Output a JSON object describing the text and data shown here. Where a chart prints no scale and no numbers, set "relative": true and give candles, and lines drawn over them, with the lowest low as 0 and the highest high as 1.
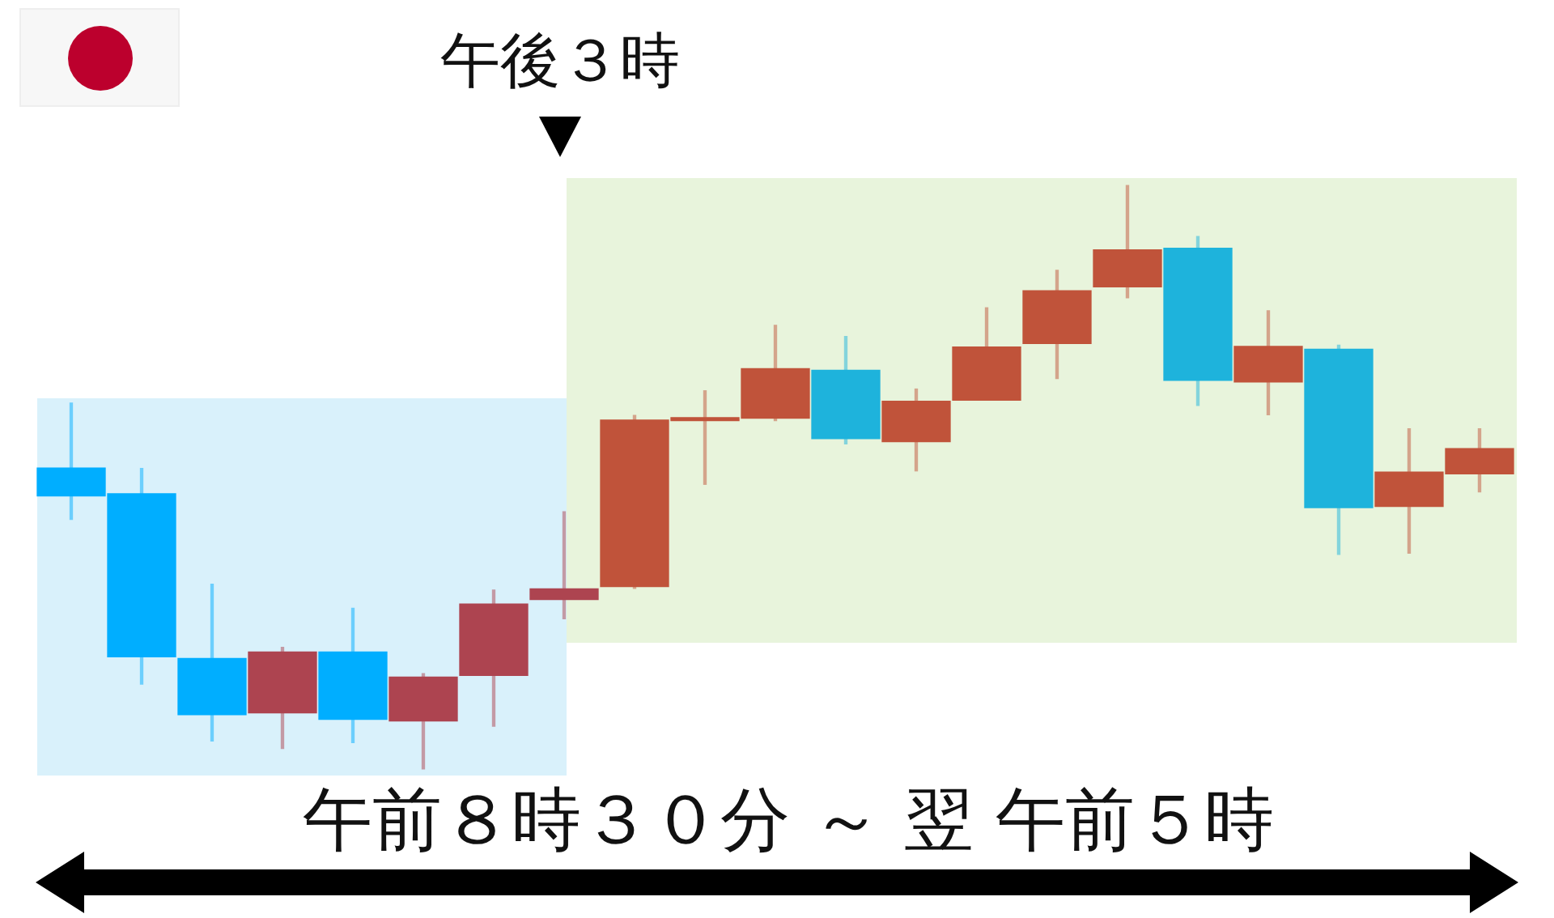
{
  "chart_data": {
    "type": "candlestick",
    "relative": true,
    "categories": [
      null,
      null,
      null,
      null,
      null,
      null,
      null,
      null,
      null,
      null,
      null,
      null,
      null,
      null,
      null,
      null,
      null,
      null,
      null,
      null,
      null
    ],
    "ohlc": [
      [
        0.516,
        0.627,
        0.428,
        0.468
      ],
      [
        0.472,
        0.515,
        0.146,
        0.193
      ],
      [
        0.19,
        0.317,
        0.049,
        0.094
      ],
      [
        0.097,
        0.209,
        0.036,
        0.201
      ],
      [
        0.201,
        0.276,
        0.046,
        0.086
      ],
      [
        0.083,
        0.164,
        0,
        0.158
      ],
      [
        0.161,
        0.307,
        0.074,
        0.283
      ],
      [
        0.291,
        0.441,
        0.258,
        0.309
      ],
      [
        0.313,
        0.606,
        0.31,
        0.598
      ],
      [
        0.597,
        0.648,
        0.488,
        0.602
      ],
      [
        0.601,
        0.76,
        0.597,
        0.686
      ],
      [
        0.683,
        0.741,
        0.557,
        0.566
      ],
      [
        0.561,
        0.651,
        0.511,
        0.63
      ],
      [
        0.632,
        0.79,
        0.632,
        0.723
      ],
      [
        0.729,
        0.854,
        0.669,
        0.819
      ],
      [
        0.826,
        1,
        0.807,
        0.889
      ],
      [
        0.892,
        0.912,
        0.623,
        0.666
      ],
      [
        0.663,
        0.785,
        0.607,
        0.724
      ],
      [
        0.719,
        0.726,
        0.368,
        0.448
      ],
      [
        0.45,
        0.583,
        0.37,
        0.509
      ],
      [
        0.506,
        0.583,
        0.475,
        0.549
      ]
    ],
    "colors": [
      "#00aeff",
      "#00aeff",
      "#00aeff",
      "#ad4450",
      "#00aeff",
      "#ad4450",
      "#ad4450",
      "#ad4450",
      "#c0533a",
      "#c0533a",
      "#c0533a",
      "#1eb3dc",
      "#c0533a",
      "#c0533a",
      "#c0533a",
      "#c0533a",
      "#1eb3dc",
      "#c0533a",
      "#1eb3dc",
      "#c0533a",
      "#c0533a"
    ],
    "annotations": [
      "午後３時",
      "午前８時３０分 ～ 翌 午前５時"
    ]
  }
}
